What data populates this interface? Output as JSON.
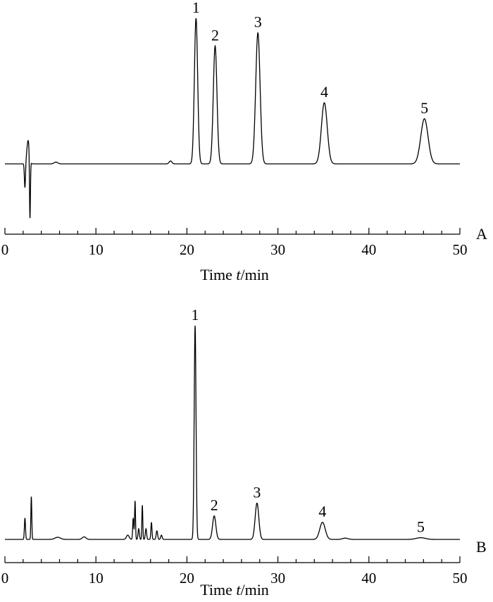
{
  "chart_data": [
    {
      "type": "line",
      "panel_label": "A",
      "xlabel": "Time t/min",
      "xlim": [
        0,
        50
      ],
      "x_ticks": [
        0,
        10,
        20,
        30,
        40,
        50
      ],
      "x_tick_labels": [
        "0",
        "10",
        "20",
        "30",
        "40",
        "50"
      ],
      "grid": false,
      "baseline": 0,
      "peaks": [
        {
          "label": "1",
          "time": 21.0,
          "height": 1.0,
          "width": 0.18
        },
        {
          "label": "2",
          "time": 23.1,
          "height": 0.81,
          "width": 0.2
        },
        {
          "label": "3",
          "time": 27.8,
          "height": 0.9,
          "width": 0.24
        },
        {
          "label": "4",
          "time": 35.1,
          "height": 0.42,
          "width": 0.32
        },
        {
          "label": "5",
          "time": 46.1,
          "height": 0.31,
          "width": 0.4
        }
      ],
      "minor_peaks": [
        {
          "time": 2.2,
          "height": -0.17,
          "width": 0.06
        },
        {
          "time": 2.55,
          "height": 0.16,
          "width": 0.14
        },
        {
          "time": 2.75,
          "height": -0.43,
          "width": 0.05
        },
        {
          "time": 5.6,
          "height": 0.012,
          "width": 0.2
        },
        {
          "time": 18.2,
          "height": 0.02,
          "width": 0.15
        }
      ]
    },
    {
      "type": "line",
      "panel_label": "B",
      "xlabel": "Time t/min",
      "xlim": [
        0,
        50
      ],
      "x_ticks": [
        0,
        10,
        20,
        30,
        40,
        50
      ],
      "x_tick_labels": [
        "0",
        "10",
        "20",
        "30",
        "40",
        "50"
      ],
      "grid": false,
      "baseline": 0,
      "peaks": [
        {
          "label": "1",
          "time": 20.9,
          "height": 1.0,
          "width": 0.1
        },
        {
          "label": "2",
          "time": 23.0,
          "height": 0.11,
          "width": 0.18
        },
        {
          "label": "3",
          "time": 27.7,
          "height": 0.17,
          "width": 0.2
        },
        {
          "label": "4",
          "time": 34.9,
          "height": 0.08,
          "width": 0.3
        },
        {
          "label": "5",
          "time": 45.7,
          "height": 0.008,
          "width": 0.5
        }
      ],
      "minor_peaks": [
        {
          "time": 2.2,
          "height": 0.1,
          "width": 0.06
        },
        {
          "time": 2.9,
          "height": 0.2,
          "width": 0.05
        },
        {
          "time": 5.8,
          "height": 0.01,
          "width": 0.3
        },
        {
          "time": 8.7,
          "height": 0.012,
          "width": 0.2
        },
        {
          "time": 13.5,
          "height": 0.02,
          "width": 0.15
        },
        {
          "time": 14.1,
          "height": 0.1,
          "width": 0.06
        },
        {
          "time": 14.3,
          "height": 0.18,
          "width": 0.05
        },
        {
          "time": 14.7,
          "height": 0.05,
          "width": 0.07
        },
        {
          "time": 15.1,
          "height": 0.16,
          "width": 0.05
        },
        {
          "time": 15.5,
          "height": 0.05,
          "width": 0.07
        },
        {
          "time": 16.1,
          "height": 0.08,
          "width": 0.06
        },
        {
          "time": 16.7,
          "height": 0.04,
          "width": 0.08
        },
        {
          "time": 17.2,
          "height": 0.02,
          "width": 0.08
        },
        {
          "time": 37.4,
          "height": 0.006,
          "width": 0.3
        }
      ]
    }
  ]
}
